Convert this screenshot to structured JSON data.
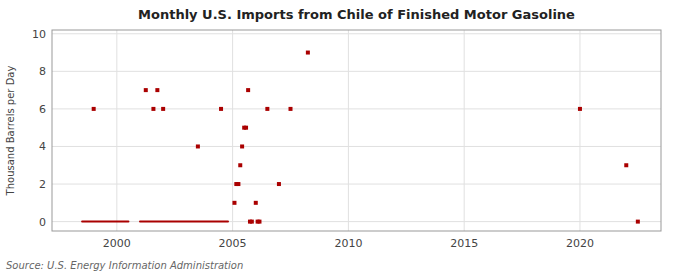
{
  "chart_data": {
    "type": "scatter",
    "title": "Monthly U.S. Imports from Chile of Finished Motor Gasoline",
    "y_label": "Thousand Barrels per Day",
    "source": "Source: U.S. Energy Information Administration",
    "xlim": [
      1997.2,
      2023.5
    ],
    "ylim": [
      -0.5,
      10.2
    ],
    "xticks": [
      2000,
      2005,
      2010,
      2015,
      2020
    ],
    "yticks": [
      0,
      2,
      4,
      6,
      8,
      10
    ],
    "grid": true,
    "series": [
      {
        "type": "scatter",
        "marker": "square",
        "color": "#aa0000",
        "x": [
          1999.0,
          2001.25,
          2001.58,
          2001.75,
          2002.0,
          2003.5,
          2004.5,
          2005.08,
          2005.16,
          2005.25,
          2005.33,
          2005.41,
          2005.5,
          2005.58,
          2005.67,
          2005.75,
          2005.83,
          2006.0,
          2006.08,
          2006.16,
          2006.5,
          2007.0,
          2007.5,
          2008.25,
          2020.0,
          2022.0,
          2022.5
        ],
        "values": [
          6,
          7,
          6,
          7,
          6,
          4,
          6,
          1,
          2,
          2,
          3,
          4,
          5,
          5,
          7,
          0,
          0,
          1,
          0,
          0,
          6,
          2,
          6,
          9,
          6,
          3,
          0
        ]
      },
      {
        "type": "line",
        "line_style": "solid",
        "color": "#aa0000",
        "x": [
          1998.5,
          2000.5
        ],
        "values": [
          0,
          0
        ]
      },
      {
        "type": "line",
        "line_style": "solid",
        "color": "#aa0000",
        "x": [
          2001.0,
          2004.8
        ],
        "values": [
          0,
          0
        ]
      }
    ]
  }
}
